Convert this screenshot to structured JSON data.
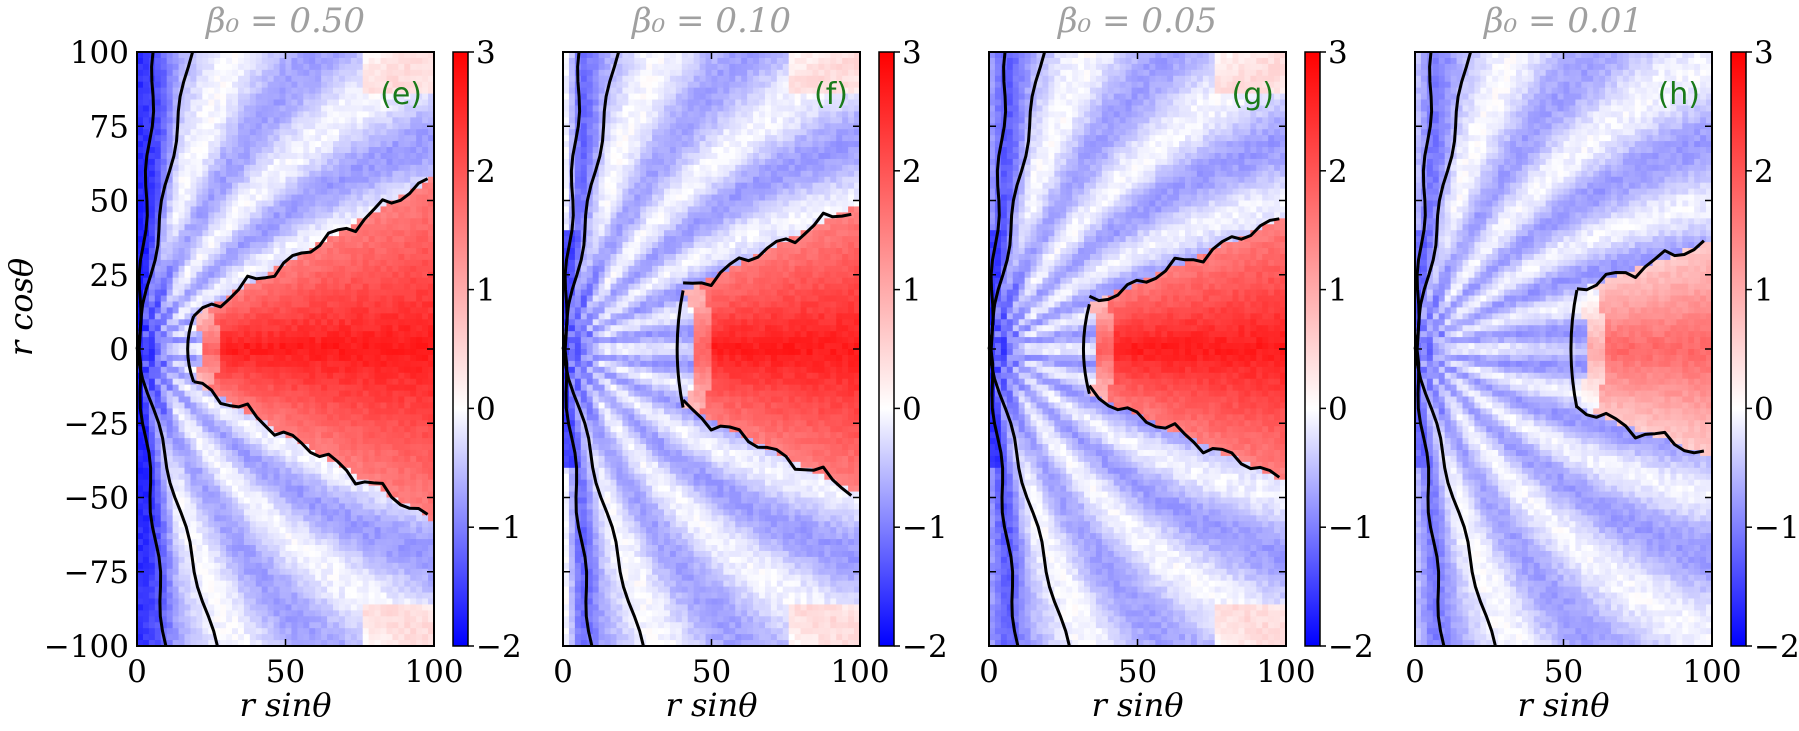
{
  "chart_data": {
    "type": "heatmap",
    "panels": [
      {
        "id": "e",
        "title": "β₀ = 0.50",
        "letter": "(e)",
        "disk_halfwidth_deg": 30,
        "wall_intensity": 0.95,
        "edge_tint": 0.0
      },
      {
        "id": "f",
        "title": "β₀ = 0.10",
        "letter": "(f)",
        "disk_halfwidth_deg": 26,
        "wall_intensity": 0.7,
        "edge_tint": 0.6
      },
      {
        "id": "g",
        "title": "β₀ = 0.05",
        "letter": "(g)",
        "disk_halfwidth_deg": 24,
        "wall_intensity": 0.8,
        "edge_tint": 0.3
      },
      {
        "id": "h",
        "title": "β₀ = 0.01",
        "letter": "(h)",
        "disk_halfwidth_deg": 20,
        "wall_intensity": 0.5,
        "edge_tint": 0.25
      }
    ],
    "xlabel": "r sinθ",
    "ylabel": "r cosθ",
    "xlim": [
      0,
      100
    ],
    "ylim": [
      -100,
      100
    ],
    "xticks": [
      {
        "value": 0,
        "label": "0"
      },
      {
        "value": 50,
        "label": "50"
      },
      {
        "value": 100,
        "label": "100"
      }
    ],
    "yticks": [
      {
        "value": 100,
        "label": "100"
      },
      {
        "value": 75,
        "label": "75"
      },
      {
        "value": 50,
        "label": "50"
      },
      {
        "value": 25,
        "label": "25"
      },
      {
        "value": 0,
        "label": "0"
      },
      {
        "value": -25,
        "label": "−25"
      },
      {
        "value": -50,
        "label": "−50"
      },
      {
        "value": -75,
        "label": "−75"
      },
      {
        "value": -100,
        "label": "−100"
      }
    ],
    "colorbar": {
      "range": [
        -2,
        3
      ],
      "colormap": "bwr",
      "ticks": [
        {
          "value": 3,
          "label": "3"
        },
        {
          "value": 2,
          "label": "2"
        },
        {
          "value": 1,
          "label": "1"
        },
        {
          "value": 0,
          "label": "0"
        },
        {
          "value": -1,
          "label": "−1"
        },
        {
          "value": -2,
          "label": "−2"
        }
      ]
    },
    "colors": {
      "low": "#0000ff",
      "mid": "#ffffff",
      "high": "#ff0000",
      "contour": "#000000",
      "letter": "#1a7a1a",
      "title": "#a0a0a0"
    }
  }
}
